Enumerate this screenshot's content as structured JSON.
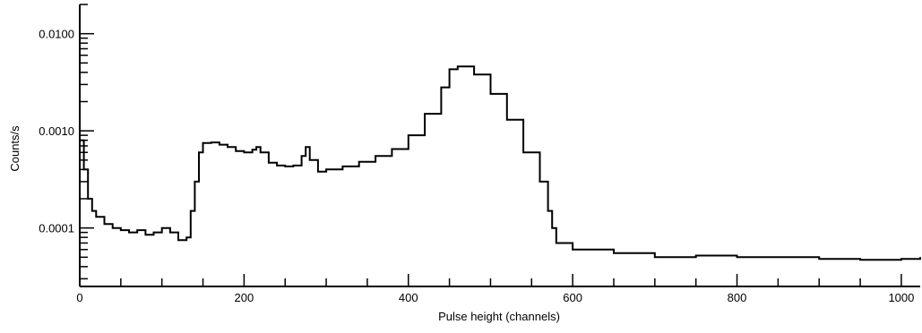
{
  "chart_data": {
    "type": "line",
    "title": "",
    "xlabel": "Pulse height (channels)",
    "ylabel": "Counts/s",
    "xlim": [
      0,
      1023
    ],
    "ylim": [
      2.5e-05,
      0.02
    ],
    "yscale": "log",
    "grid": false,
    "legend": "none",
    "x_ticks": [
      0,
      200,
      400,
      600,
      800,
      1000
    ],
    "x_tick_labels": [
      "0",
      "200",
      "400",
      "600",
      "800",
      "1000"
    ],
    "y_ticks": [
      0.0001,
      0.001,
      0.01
    ],
    "y_tick_labels": [
      "0.0001",
      "0.0010",
      "0.0100"
    ],
    "series": [
      {
        "color": "#000000",
        "style": "step",
        "x": [
          0,
          5,
          10,
          15,
          20,
          30,
          40,
          50,
          60,
          70,
          80,
          90,
          100,
          110,
          120,
          130,
          135,
          140,
          145,
          150,
          160,
          170,
          180,
          190,
          200,
          210,
          215,
          220,
          230,
          240,
          250,
          260,
          270,
          275,
          280,
          290,
          300,
          320,
          340,
          360,
          380,
          400,
          420,
          440,
          450,
          460,
          480,
          500,
          520,
          540,
          560,
          570,
          575,
          580,
          600,
          650,
          700,
          750,
          800,
          850,
          900,
          950,
          1000,
          1023
        ],
        "y": [
          0.0008,
          0.0004,
          0.0002,
          0.00015,
          0.00013,
          0.00011,
          0.0001,
          9.5e-05,
          9e-05,
          9.5e-05,
          8.5e-05,
          9e-05,
          0.0001,
          9e-05,
          7.5e-05,
          8e-05,
          0.00015,
          0.0003,
          0.0006,
          0.00075,
          0.00076,
          0.00072,
          0.00068,
          0.00062,
          0.0006,
          0.00064,
          0.00068,
          0.0006,
          0.00047,
          0.00044,
          0.00043,
          0.00044,
          0.00055,
          0.00068,
          0.0005,
          0.00038,
          0.0004,
          0.00043,
          0.00048,
          0.00055,
          0.00065,
          0.0009,
          0.0015,
          0.0028,
          0.0043,
          0.0046,
          0.0038,
          0.0024,
          0.0013,
          0.0006,
          0.0003,
          0.00015,
          0.0001,
          7e-05,
          6e-05,
          5.5e-05,
          5e-05,
          5.2e-05,
          5e-05,
          5e-05,
          4.8e-05,
          4.7e-05,
          4.8e-05,
          5e-05
        ]
      }
    ]
  }
}
